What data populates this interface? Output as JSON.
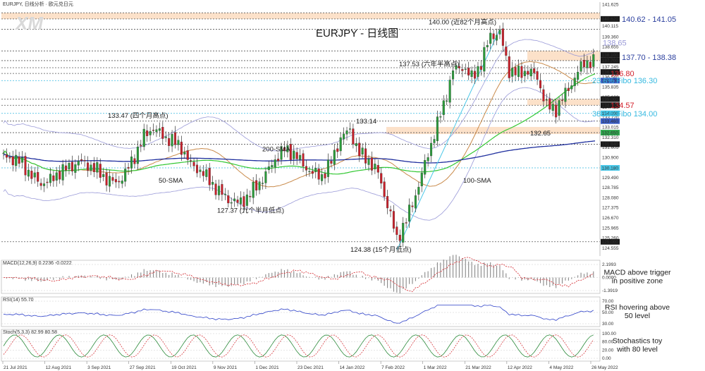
{
  "header": {
    "symbol": "EURJPY, 日线分析 · 欧元兑日元",
    "watermark": "XM"
  },
  "chart_data": [
    {
      "type": "candlestick",
      "title": "EURJPY - 日线图",
      "ylim": [
        124.0,
        141.8
      ],
      "y_ticks": [
        "141.625",
        "140.620",
        "140.115",
        "139.360",
        "138.655",
        "137.950",
        "137.245",
        "136.540",
        "135.835",
        "135.130",
        "134.425",
        "133.720",
        "133.015",
        "132.310",
        "131.605",
        "130.900",
        "130.195",
        "129.490",
        "128.785",
        "128.080",
        "127.375",
        "126.670",
        "125.965",
        "125.260",
        "124.555"
      ],
      "x_dates": [
        "21 Jul 2021",
        "12 Aug 2021",
        "3 Sep 2021",
        "27 Sep 2021",
        "19 Oct 2021",
        "9 Nov 2021",
        "1 Dec 2021",
        "23 Dec 2021",
        "14 Jan 2022",
        "7 Feb 2022",
        "1 Mar 2022",
        "21 Mar 2022",
        "12 Apr 2022",
        "4 May 2022",
        "26 May 2022"
      ],
      "highlighted_prices": [
        {
          "label": "140.620",
          "bg": "#1a1a1a",
          "fg": "#ffffff"
        },
        {
          "label": "138.100",
          "bg": "#1a1a1a",
          "fg": "#ffffff"
        },
        {
          "label": "137.700",
          "bg": "#1a1a1a",
          "fg": "#ffffff"
        },
        {
          "label": "136.900",
          "bg": "#1a1a1a",
          "fg": "#ffffff"
        },
        {
          "label": "136.300",
          "bg": "#3a5fc8",
          "fg": "#ffffff"
        },
        {
          "label": "135.000",
          "bg": "#1a1a1a",
          "fg": "#ffffff"
        },
        {
          "label": "134.570",
          "bg": "#1a1a1a",
          "fg": "#ffffff"
        },
        {
          "label": "134.000",
          "bg": "#4ac8e8",
          "fg": "#ffffff"
        },
        {
          "label": "133.460",
          "bg": "#3a5fc8",
          "fg": "#ffffff"
        },
        {
          "label": "132.650",
          "bg": "#2fa84f",
          "fg": "#ffffff"
        },
        {
          "label": "131.840",
          "bg": "#1a1a1a",
          "fg": "#ffffff"
        },
        {
          "label": "130.180",
          "bg": "#4ac8e8",
          "fg": "#ffffff"
        },
        {
          "label": "125.000",
          "bg": "#1a1a1a",
          "fg": "#ffffff"
        }
      ],
      "levels": [
        {
          "label": "140.62 - 141.05",
          "value": 140.62,
          "color": "#2b3f9e",
          "zone": [
            140.62,
            141.05
          ]
        },
        {
          "label": "138.65",
          "value": 138.65,
          "color": "#9a9ad8"
        },
        {
          "label": "137.70 - 138.38",
          "value": 137.7,
          "color": "#2b3f9e",
          "zone": [
            137.7,
            138.38
          ]
        },
        {
          "label": "136.80",
          "value": 136.8,
          "color": "#d21f2a"
        },
        {
          "label": "23.6% Fibo 136.30",
          "value": 136.3,
          "color": "#36b9e0"
        },
        {
          "label": "134.57",
          "value": 134.57,
          "color": "#d21f2a",
          "zone": [
            134.57,
            135.0
          ]
        },
        {
          "label": "38.2% Fibo 134.00",
          "value": 134.0,
          "color": "#36b9e0"
        }
      ],
      "annotations": [
        {
          "text": "140.00 (近82个月高点)",
          "value": 140.0
        },
        {
          "text": "137.53 (六年半高点)",
          "value": 137.53
        },
        {
          "text": "133.47 (四个月高点)",
          "value": 133.47
        },
        {
          "text": "133.14",
          "value": 133.14
        },
        {
          "text": "132.65",
          "value": 132.65
        },
        {
          "text": "127.37 (九个半月低点)",
          "value": 127.37
        },
        {
          "text": "124.38 (15个月低点)",
          "value": 124.38
        }
      ],
      "indicators": [
        {
          "name": "200-SMA",
          "color": "#1f2f9e"
        },
        {
          "name": "100-SMA",
          "color": "#33c833"
        },
        {
          "name": "50-SMA",
          "color": "#c98a4a"
        }
      ],
      "series_anchor_close": [
        [
          0,
          131.0
        ],
        [
          6,
          130.8
        ],
        [
          12,
          130.5
        ],
        [
          18,
          129.6
        ],
        [
          24,
          129.1
        ],
        [
          30,
          129.3
        ],
        [
          36,
          129.9
        ],
        [
          42,
          130.2
        ],
        [
          48,
          130.6
        ],
        [
          54,
          130.4
        ],
        [
          60,
          130.0
        ],
        [
          66,
          129.4
        ],
        [
          72,
          129.1
        ],
        [
          78,
          129.8
        ],
        [
          84,
          131.0
        ],
        [
          90,
          132.4
        ],
        [
          96,
          133.0
        ],
        [
          102,
          132.4
        ],
        [
          108,
          132.1
        ],
        [
          114,
          131.6
        ],
        [
          120,
          130.4
        ],
        [
          126,
          130.0
        ],
        [
          132,
          129.3
        ],
        [
          138,
          128.5
        ],
        [
          144,
          128.0
        ],
        [
          150,
          127.7
        ],
        [
          156,
          128.1
        ],
        [
          162,
          128.9
        ],
        [
          168,
          129.7
        ],
        [
          174,
          130.8
        ],
        [
          180,
          131.5
        ],
        [
          186,
          131.2
        ],
        [
          192,
          130.4
        ],
        [
          198,
          129.8
        ],
        [
          204,
          129.6
        ],
        [
          210,
          130.6
        ],
        [
          216,
          132.3
        ],
        [
          222,
          132.8
        ],
        [
          228,
          131.2
        ],
        [
          234,
          130.7
        ],
        [
          240,
          129.8
        ],
        [
          246,
          127.6
        ],
        [
          252,
          125.2
        ],
        [
          258,
          126.5
        ],
        [
          264,
          128.3
        ],
        [
          270,
          130.4
        ],
        [
          276,
          132.6
        ],
        [
          282,
          134.6
        ],
        [
          288,
          137.0
        ],
        [
          294,
          137.3
        ],
        [
          300,
          136.5
        ],
        [
          306,
          137.5
        ],
        [
          312,
          139.5
        ],
        [
          318,
          139.6
        ],
        [
          324,
          137.0
        ],
        [
          330,
          136.8
        ],
        [
          336,
          137.0
        ],
        [
          342,
          136.5
        ],
        [
          348,
          134.5
        ],
        [
          354,
          134.3
        ],
        [
          360,
          135.4
        ],
        [
          366,
          136.5
        ],
        [
          372,
          137.6
        ]
      ]
    },
    {
      "type": "line",
      "title": "MACD(12,26,9) 0.2236 -0.0222",
      "y_ticks": [
        "2.1993",
        "0.0000",
        "-1.3919"
      ],
      "note": "MACD above trigger in positive zone"
    },
    {
      "type": "line",
      "title": "RSI(14) 55.70",
      "y_ticks": [
        "70.00",
        "50.00",
        "30.00"
      ],
      "note": "RSI hovering above 50 level"
    },
    {
      "type": "line",
      "title": "Stoch(5,3,3) 82.99 80.58",
      "y_ticks": [
        "100.00",
        "80.00",
        "20.00",
        "0.00"
      ],
      "note": "Stochastics toy with 80 level"
    }
  ]
}
